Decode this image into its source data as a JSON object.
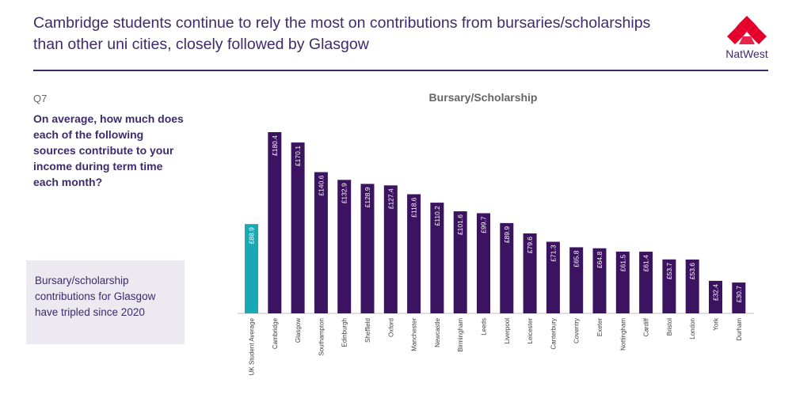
{
  "header": {
    "title": "Cambridge students continue to rely the most on contributions from bursaries/scholarships than other uni cities, closely followed by Glasgow",
    "logo_text": "NatWest"
  },
  "question": {
    "label": "Q7",
    "text": "On average, how much does each of the following sources contribute to your income during term time each month?"
  },
  "callout": {
    "text": "Bursary/scholarship contributions for Glasgow have tripled since 2020"
  },
  "colors": {
    "brand": "#3d2b6b",
    "bar": "#3c1361",
    "highlight": "#19a8b5",
    "logo": "#e4002b"
  },
  "chart_data": {
    "type": "bar",
    "title": "Bursary/Scholarship",
    "categories": [
      "UK Student Average",
      "Cambridge",
      "Glasgow",
      "Southampton",
      "Edinburgh",
      "Sheffield",
      "Oxford",
      "Manchester",
      "Newcastle",
      "Birmingham",
      "Leeds",
      "Liverpool",
      "Leicester",
      "Canterbury",
      "Coventry",
      "Exeter",
      "Nottingham",
      "Cardiff",
      "Bristol",
      "London",
      "York",
      "Durham"
    ],
    "values": [
      88.9,
      180.4,
      170.1,
      140.6,
      132.9,
      128.9,
      127.4,
      118.6,
      110.2,
      101.6,
      99.7,
      89.9,
      79.6,
      71.3,
      65.8,
      64.8,
      61.5,
      61.4,
      53.7,
      53.6,
      32.4,
      30.7
    ],
    "data_labels": [
      "£88.9",
      "£180.4",
      "£170.1",
      "£140.6",
      "£132.9",
      "£128.9",
      "£127.4",
      "£118.6",
      "£110.2",
      "£101.6",
      "£99.7",
      "£89.9",
      "£79.6",
      "£71.3",
      "£65.8",
      "£64.8",
      "£61.5",
      "£61.4",
      "£53.7",
      "£53.6",
      "£32.4",
      "£30.7"
    ],
    "highlight_index": 0,
    "ylim": [
      0,
      180.4
    ],
    "grid": false,
    "legend": "none"
  }
}
